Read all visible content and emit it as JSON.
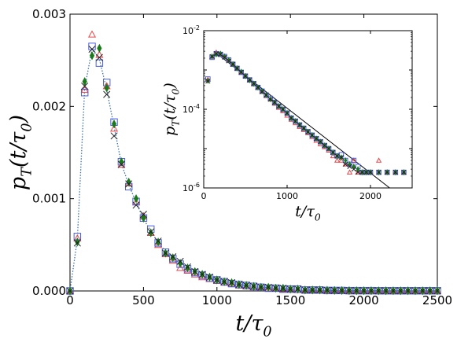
{
  "chart_data": [
    {
      "type": "scatter",
      "role": "main",
      "xlabel": "t/τ0",
      "ylabel": "pT(t/τ0)",
      "xlim": [
        0,
        2500
      ],
      "ylim": [
        0,
        0.003
      ],
      "x_ticks": [
        0,
        500,
        1000,
        1500,
        2000,
        2500
      ],
      "x_tick_labels": [
        "0",
        "500",
        "1000",
        "1500",
        "2000",
        "2500"
      ],
      "y_ticks": [
        0,
        0.001,
        0.002,
        0.003
      ],
      "y_tick_labels": [
        "0.000",
        "0.001",
        "0.002",
        "0.003"
      ],
      "grid": false,
      "legend": "none",
      "fit_line": {
        "style": "dotted",
        "color": "#3b6fb0",
        "x": [
          0,
          50,
          100,
          150,
          200,
          250,
          300,
          350,
          400,
          450,
          500,
          550,
          600,
          650,
          700,
          750,
          800,
          850,
          900,
          950,
          1000,
          1050,
          1100,
          1150,
          1200,
          1250,
          1300,
          1350,
          1400,
          1450,
          1500,
          1600,
          1700,
          1800,
          1900,
          2000,
          2100,
          2200,
          2300,
          2400,
          2500
        ],
        "y": [
          0,
          0.00056,
          0.0022,
          0.00262,
          0.00251,
          0.00218,
          0.00178,
          0.00138,
          0.00115,
          0.00096,
          0.00078,
          0.00065,
          0.00052,
          0.00043,
          0.00036,
          0.0003,
          0.00025,
          0.0002,
          0.00017,
          0.00014,
          0.00012,
          0.0001,
          8.5e-05,
          7e-05,
          6e-05,
          5e-05,
          4.2e-05,
          3.5e-05,
          2.9e-05,
          2.4e-05,
          2e-05,
          1.4e-05,
          1e-05,
          7e-06,
          5e-06,
          3.5e-06,
          2.5e-06,
          1.8e-06,
          1.2e-06,
          9e-07,
          6e-07
        ]
      },
      "x": [
        0,
        50,
        100,
        150,
        200,
        250,
        300,
        350,
        400,
        450,
        500,
        550,
        600,
        650,
        700,
        750,
        800,
        850,
        900,
        950,
        1000,
        1050,
        1100,
        1150,
        1200,
        1250,
        1300,
        1350,
        1400,
        1450,
        1500,
        1550,
        1600,
        1650,
        1700,
        1750,
        1800,
        1850,
        1900,
        1950,
        2000,
        2050,
        2100,
        2150,
        2200,
        2250,
        2300,
        2350,
        2400,
        2450,
        2500
      ],
      "series": [
        {
          "marker": "triangle",
          "color": "#e8464a",
          "values": [
            0,
            0.00057,
            0.00218,
            0.00278,
            0.00256,
            0.00222,
            0.00176,
            0.00137,
            0.00117,
            0.00096,
            0.00081,
            0.00063,
            0.0005,
            0.0004,
            0.00033,
            0.00025,
            0.00022,
            0.00018,
            0.00015,
            0.00013,
            0.00011,
            9e-05,
            8e-05,
            6e-05,
            5e-05,
            4e-05,
            4e-05,
            3e-05,
            3e-05,
            2e-05,
            2e-05,
            1e-05,
            1e-05,
            1e-05,
            1e-05,
            5e-06,
            5e-06,
            5e-06,
            3e-06,
            3e-06,
            3e-06,
            2e-06,
            2e-06,
            2e-06,
            2e-06,
            2e-06,
            2e-06,
            2e-06,
            2e-06,
            2e-06,
            2e-06
          ]
        },
        {
          "marker": "square",
          "color": "#4b5fe0",
          "values": [
            0,
            0.00059,
            0.00215,
            0.00265,
            0.00247,
            0.00226,
            0.00183,
            0.0014,
            0.00113,
            0.00097,
            0.00079,
            0.00067,
            0.00052,
            0.00042,
            0.00035,
            0.00029,
            0.00024,
            0.0002,
            0.00017,
            0.00014,
            0.00012,
            0.0001,
            8e-05,
            7e-05,
            6e-05,
            5e-05,
            4e-05,
            3e-05,
            3e-05,
            2e-05,
            2e-05,
            2e-05,
            1e-05,
            1e-05,
            1e-05,
            5e-06,
            5e-06,
            5e-06,
            3e-06,
            3e-06,
            3e-06,
            3e-06,
            2e-06,
            2e-06,
            2e-06,
            2e-06,
            2e-06,
            2e-06,
            2e-06,
            2e-06,
            2e-06
          ]
        },
        {
          "marker": "diamond",
          "color": "#1a7a1a",
          "values": [
            0,
            0.00053,
            0.00227,
            0.00255,
            0.00263,
            0.0022,
            0.00181,
            0.0014,
            0.00118,
            0.001,
            0.00079,
            0.00063,
            0.00053,
            0.00041,
            0.00036,
            0.0003,
            0.00025,
            0.00021,
            0.00018,
            0.00015,
            0.00012,
            0.0001,
            9e-05,
            7e-05,
            6e-05,
            5e-05,
            4e-05,
            4e-05,
            3e-05,
            3e-05,
            2e-05,
            2e-05,
            1e-05,
            1e-05,
            1e-05,
            8e-06,
            6e-06,
            5e-06,
            4e-06,
            3e-06,
            3e-06,
            3e-06,
            2e-06,
            2e-06,
            2e-06,
            2e-06,
            2e-06,
            2e-06,
            2e-06,
            2e-06,
            2e-06
          ]
        },
        {
          "marker": "x",
          "color": "#222222",
          "values": [
            0,
            0.00052,
            0.00222,
            0.00262,
            0.00253,
            0.00213,
            0.00168,
            0.00137,
            0.00116,
            0.00093,
            0.00083,
            0.00064,
            0.00054,
            0.00041,
            0.00037,
            0.00032,
            0.00026,
            0.00021,
            0.00018,
            0.00015,
            0.00012,
            0.0001,
            9e-05,
            7e-05,
            6e-05,
            5e-05,
            4e-05,
            4e-05,
            3e-05,
            3e-05,
            2e-05,
            2e-05,
            1e-05,
            1e-05,
            1e-05,
            8e-06,
            6e-06,
            5e-06,
            4e-06,
            3e-06,
            3e-06,
            3e-06,
            2e-06,
            2e-06,
            2e-06,
            2e-06,
            2e-06,
            2e-06,
            2e-06,
            2e-06,
            2e-06
          ]
        }
      ]
    },
    {
      "type": "scatter",
      "role": "inset",
      "xlabel": "t/τ0",
      "ylabel": "pT(t/τ0)",
      "yscale": "log",
      "xlim": [
        0,
        2500
      ],
      "ylim": [
        1e-06,
        0.01
      ],
      "x_ticks": [
        0,
        1000,
        2000
      ],
      "x_tick_labels": [
        "0",
        "1000",
        "2000"
      ],
      "y_ticks": [
        1e-06,
        0.0001,
        0.01
      ],
      "y_tick_labels": [
        {
          "base": "10",
          "exp": "-6"
        },
        {
          "base": "10",
          "exp": "-4"
        },
        {
          "base": "10",
          "exp": "-2"
        }
      ],
      "grid": false,
      "legend": "none",
      "fit_line": {
        "style": "solid",
        "color": "#000000",
        "x": [
          150,
          2230
        ],
        "y": [
          0.0027,
          1e-06
        ]
      },
      "x": [
        50,
        100,
        150,
        200,
        250,
        300,
        350,
        400,
        450,
        500,
        550,
        600,
        650,
        700,
        750,
        800,
        850,
        900,
        950,
        1000,
        1050,
        1100,
        1150,
        1200,
        1250,
        1300,
        1350,
        1400,
        1450,
        1500,
        1550,
        1600,
        1650,
        1700,
        1750,
        1800,
        1850,
        1900,
        1950,
        2000,
        2100,
        2200,
        2300,
        2400
      ],
      "series": [
        {
          "marker": "triangle",
          "color": "#e8464a",
          "values": [
            0.00057,
            0.0022,
            0.0028,
            0.0026,
            0.0022,
            0.0018,
            0.0014,
            0.0011,
            0.00088,
            0.0007,
            0.00055,
            0.00044,
            0.00035,
            0.00028,
            0.00022,
            0.00018,
            0.00014,
            0.00011,
            9e-05,
            7e-05,
            5.5e-05,
            4.5e-05,
            3.6e-05,
            3e-05,
            2.5e-05,
            2e-05,
            1.6e-05,
            1.3e-05,
            1.1e-05,
            9e-06,
            6.5e-06,
            5e-06,
            5e-06,
            4e-06,
            2.5e-06,
            5e-06,
            2.5e-06,
            2.5e-06,
            2.5e-06,
            2.5e-06,
            5e-06,
            2.5e-06,
            2.5e-06,
            2.5e-06
          ]
        },
        {
          "marker": "square",
          "color": "#4b5fe0",
          "values": [
            0.00059,
            0.0021,
            0.0026,
            0.0025,
            0.0022,
            0.0018,
            0.0014,
            0.0011,
            0.00087,
            0.0007,
            0.00056,
            0.00045,
            0.00036,
            0.00029,
            0.00023,
            0.00019,
            0.00015,
            0.00012,
            0.0001,
            8e-05,
            6e-05,
            5e-05,
            4e-05,
            3.3e-05,
            2.7e-05,
            2.2e-05,
            1.8e-05,
            1.5e-05,
            1.2e-05,
            1e-05,
            8e-06,
            6.5e-06,
            7e-06,
            5e-06,
            4e-06,
            5e-06,
            3.5e-06,
            2.5e-06,
            2.5e-06,
            2.5e-06,
            2.5e-06,
            2.5e-06,
            2.5e-06,
            2.5e-06
          ]
        },
        {
          "marker": "diamond",
          "color": "#1a7a1a",
          "values": [
            0.00053,
            0.0022,
            0.0025,
            0.0026,
            0.0022,
            0.0018,
            0.0014,
            0.0011,
            0.0009,
            0.0007,
            0.00055,
            0.00045,
            0.00036,
            0.00029,
            0.00023,
            0.00018,
            0.00015,
            0.00012,
            0.0001,
            8e-05,
            6e-05,
            5e-05,
            4e-05,
            3.3e-05,
            2.7e-05,
            2.2e-05,
            1.8e-05,
            1.5e-05,
            1.2e-05,
            1e-05,
            8e-06,
            6.5e-06,
            6e-06,
            5e-06,
            4e-06,
            3.5e-06,
            3e-06,
            2.5e-06,
            2.5e-06,
            2.5e-06,
            2.5e-06,
            2.5e-06,
            2.5e-06,
            2.5e-06
          ]
        },
        {
          "marker": "x",
          "color": "#222222",
          "values": [
            0.00052,
            0.0022,
            0.0026,
            0.0025,
            0.0021,
            0.0017,
            0.0014,
            0.0011,
            0.00088,
            0.0007,
            0.00056,
            0.00045,
            0.00036,
            0.00028,
            0.00023,
            0.00018,
            0.00015,
            0.00012,
            0.0001,
            8e-05,
            6e-05,
            5e-05,
            4e-05,
            3.3e-05,
            2.7e-05,
            2.2e-05,
            1.8e-05,
            1.5e-05,
            1.2e-05,
            1e-05,
            8e-06,
            6.5e-06,
            6e-06,
            4e-06,
            3.5e-06,
            3e-06,
            2.5e-06,
            2.5e-06,
            2.5e-06,
            2.5e-06,
            2.5e-06,
            2.5e-06,
            2.5e-06,
            2.5e-06
          ]
        }
      ]
    }
  ]
}
